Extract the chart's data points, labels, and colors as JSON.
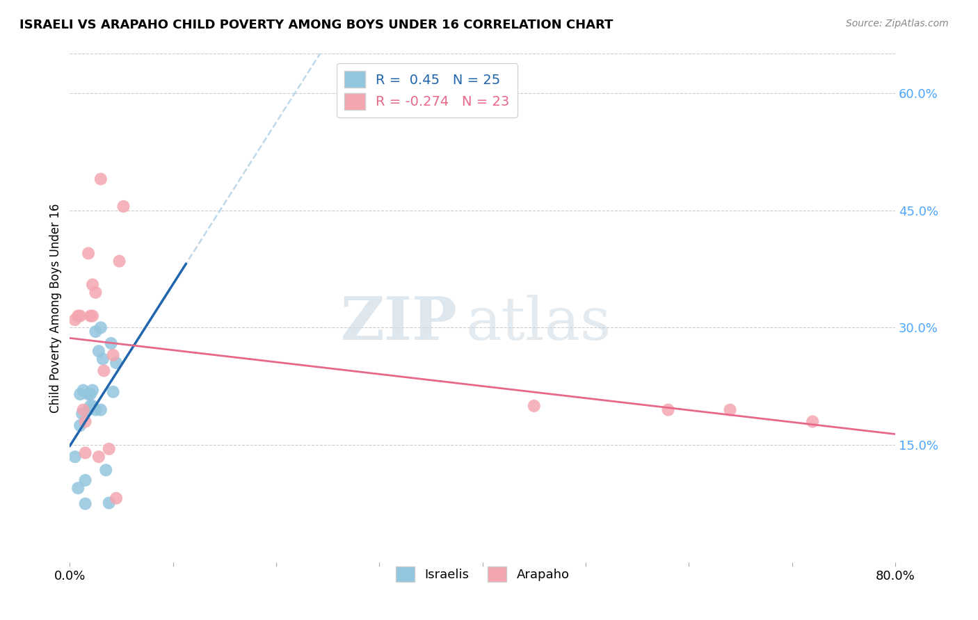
{
  "title": "ISRAELI VS ARAPAHO CHILD POVERTY AMONG BOYS UNDER 16 CORRELATION CHART",
  "source": "Source: ZipAtlas.com",
  "ylabel": "Child Poverty Among Boys Under 16",
  "xlim": [
    0.0,
    0.8
  ],
  "ylim": [
    0.0,
    0.65
  ],
  "yticks_right": [
    0.15,
    0.3,
    0.45,
    0.6
  ],
  "ytick_right_labels": [
    "15.0%",
    "30.0%",
    "45.0%",
    "60.0%"
  ],
  "israeli_color": "#92c5de",
  "arapaho_color": "#f4a6b0",
  "israeli_line_color": "#2166ac",
  "arapaho_line_color": "#e8688a",
  "israeli_dashed_color": "#b8d4e8",
  "R_israeli": 0.45,
  "N_israeli": 25,
  "R_arapaho": -0.274,
  "N_arapaho": 23,
  "israeli_x": [
    0.005,
    0.008,
    0.01,
    0.01,
    0.012,
    0.013,
    0.015,
    0.015,
    0.018,
    0.018,
    0.02,
    0.02,
    0.022,
    0.022,
    0.025,
    0.025,
    0.028,
    0.03,
    0.03,
    0.032,
    0.035,
    0.038,
    0.04,
    0.042,
    0.045
  ],
  "israeli_y": [
    0.135,
    0.095,
    0.175,
    0.215,
    0.19,
    0.22,
    0.075,
    0.105,
    0.195,
    0.215,
    0.2,
    0.215,
    0.2,
    0.22,
    0.195,
    0.295,
    0.27,
    0.195,
    0.3,
    0.26,
    0.118,
    0.076,
    0.28,
    0.218,
    0.255
  ],
  "arapaho_x": [
    0.005,
    0.008,
    0.01,
    0.013,
    0.015,
    0.015,
    0.018,
    0.02,
    0.022,
    0.022,
    0.025,
    0.028,
    0.03,
    0.033,
    0.038,
    0.042,
    0.045,
    0.048,
    0.052,
    0.45,
    0.58,
    0.64,
    0.72
  ],
  "arapaho_y": [
    0.31,
    0.315,
    0.315,
    0.195,
    0.14,
    0.18,
    0.395,
    0.315,
    0.355,
    0.315,
    0.345,
    0.135,
    0.49,
    0.245,
    0.145,
    0.265,
    0.082,
    0.385,
    0.455,
    0.2,
    0.195,
    0.195,
    0.18
  ],
  "watermark_zip": "ZIP",
  "watermark_atlas": "atlas",
  "background_color": "#ffffff",
  "grid_color": "#cccccc"
}
